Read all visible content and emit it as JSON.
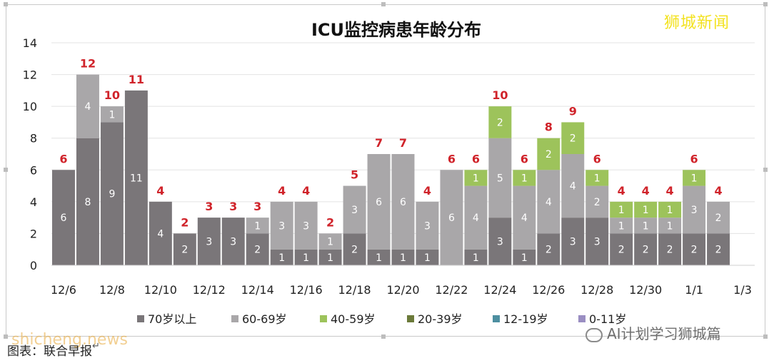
{
  "chart_data": {
    "type": "bar",
    "stacked": true,
    "title": "ICU监控病患年龄分布",
    "categories": [
      "12/6",
      "12/7",
      "12/8",
      "12/9",
      "12/10",
      "12/11",
      "12/12",
      "12/13",
      "12/14",
      "12/15",
      "12/16",
      "12/17",
      "12/18",
      "12/19",
      "12/20",
      "12/21",
      "12/22",
      "12/23",
      "12/24",
      "12/25",
      "12/26",
      "12/27",
      "12/28",
      "12/29",
      "12/30",
      "12/31",
      "1/1",
      "1/2",
      "1/3"
    ],
    "x_tick_labels": [
      "12/6",
      "12/8",
      "12/10",
      "12/12",
      "12/14",
      "12/16",
      "12/18",
      "12/20",
      "12/22",
      "12/24",
      "12/26",
      "12/28",
      "12/30",
      "1/1",
      "1/3"
    ],
    "ylim": [
      0,
      14
    ],
    "yticks": [
      0,
      2,
      4,
      6,
      8,
      10,
      12,
      14
    ],
    "grid": true,
    "legend_position": "bottom",
    "series": [
      {
        "name": "70岁以上",
        "color": "#7a7679",
        "values": [
          6,
          8,
          9,
          11,
          4,
          2,
          3,
          3,
          2,
          1,
          1,
          1,
          2,
          1,
          1,
          1,
          0,
          1,
          3,
          1,
          2,
          3,
          3,
          2,
          2,
          2,
          2,
          2,
          0
        ]
      },
      {
        "name": "60-69岁",
        "color": "#a9a7a9",
        "values": [
          0,
          4,
          1,
          0,
          0,
          0,
          0,
          0,
          1,
          3,
          3,
          1,
          3,
          6,
          6,
          3,
          6,
          4,
          5,
          4,
          4,
          4,
          2,
          1,
          1,
          1,
          3,
          2,
          0
        ]
      },
      {
        "name": "40-59岁",
        "color": "#9dc35b",
        "values": [
          0,
          0,
          0,
          0,
          0,
          0,
          0,
          0,
          0,
          0,
          0,
          0,
          0,
          0,
          0,
          0,
          0,
          1,
          2,
          1,
          2,
          2,
          1,
          1,
          1,
          1,
          1,
          0,
          0
        ]
      },
      {
        "name": "20-39岁",
        "color": "#6b7a3a",
        "values": [
          0,
          0,
          0,
          0,
          0,
          0,
          0,
          0,
          0,
          0,
          0,
          0,
          0,
          0,
          0,
          0,
          0,
          0,
          0,
          0,
          0,
          0,
          0,
          0,
          0,
          0,
          0,
          0,
          0
        ]
      },
      {
        "name": "12-19岁",
        "color": "#4d8fa0",
        "values": [
          0,
          0,
          0,
          0,
          0,
          0,
          0,
          0,
          0,
          0,
          0,
          0,
          0,
          0,
          0,
          0,
          0,
          0,
          0,
          0,
          0,
          0,
          0,
          0,
          0,
          0,
          0,
          0,
          0
        ]
      },
      {
        "name": "0-11岁",
        "color": "#9a8ec2",
        "values": [
          0,
          0,
          0,
          0,
          0,
          0,
          0,
          0,
          0,
          0,
          0,
          0,
          0,
          0,
          0,
          0,
          0,
          0,
          0,
          0,
          0,
          0,
          0,
          0,
          0,
          0,
          0,
          0,
          0
        ]
      }
    ],
    "totals": [
      6,
      12,
      10,
      11,
      4,
      2,
      3,
      3,
      3,
      4,
      4,
      2,
      5,
      7,
      7,
      4,
      6,
      6,
      10,
      6,
      8,
      9,
      6,
      4,
      4,
      4,
      6,
      4,
      0
    ],
    "total_label_color": "#d0232a"
  },
  "watermark": "狮城新闻",
  "source_text": "图表：联合早报",
  "site_watermark": "shicheng.news",
  "wechat_watermark": "AI计划学习狮城篇"
}
